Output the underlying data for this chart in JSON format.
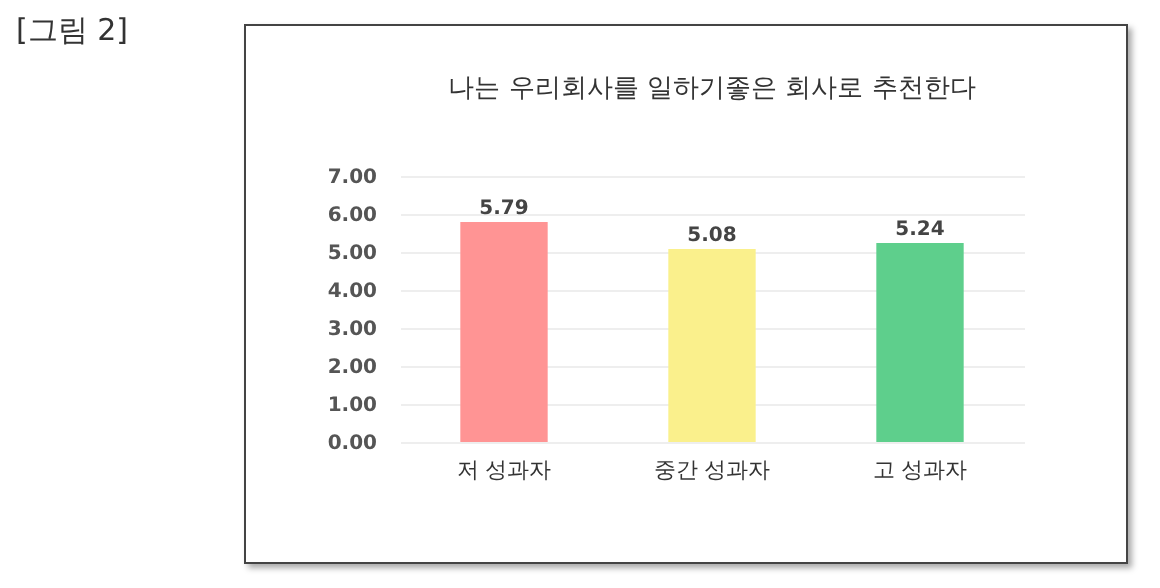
{
  "chart_data": {
    "type": "bar",
    "title": "나는 우리회사를 일하기좋은 회사로 추천한다",
    "annotations": [
      "[그림 2]"
    ],
    "categories": [
      "저 성과자",
      "중간 성과자",
      "고 성과자"
    ],
    "values": [
      5.79,
      5.08,
      5.24
    ],
    "colors": [
      "#ff9494",
      "#faf08c",
      "#5ecf8c"
    ],
    "ylim": [
      0,
      7
    ],
    "yticks": [
      {
        "value": 0,
        "label": "0.00"
      },
      {
        "value": 1,
        "label": "1.00"
      },
      {
        "value": 2,
        "label": "2.00"
      },
      {
        "value": 3,
        "label": "3.00"
      },
      {
        "value": 4,
        "label": "4.00"
      },
      {
        "value": 5,
        "label": "5.00"
      },
      {
        "value": 6,
        "label": "6.00"
      },
      {
        "value": 7,
        "label": "7.00"
      }
    ],
    "grid": "y",
    "data_labels": true
  }
}
